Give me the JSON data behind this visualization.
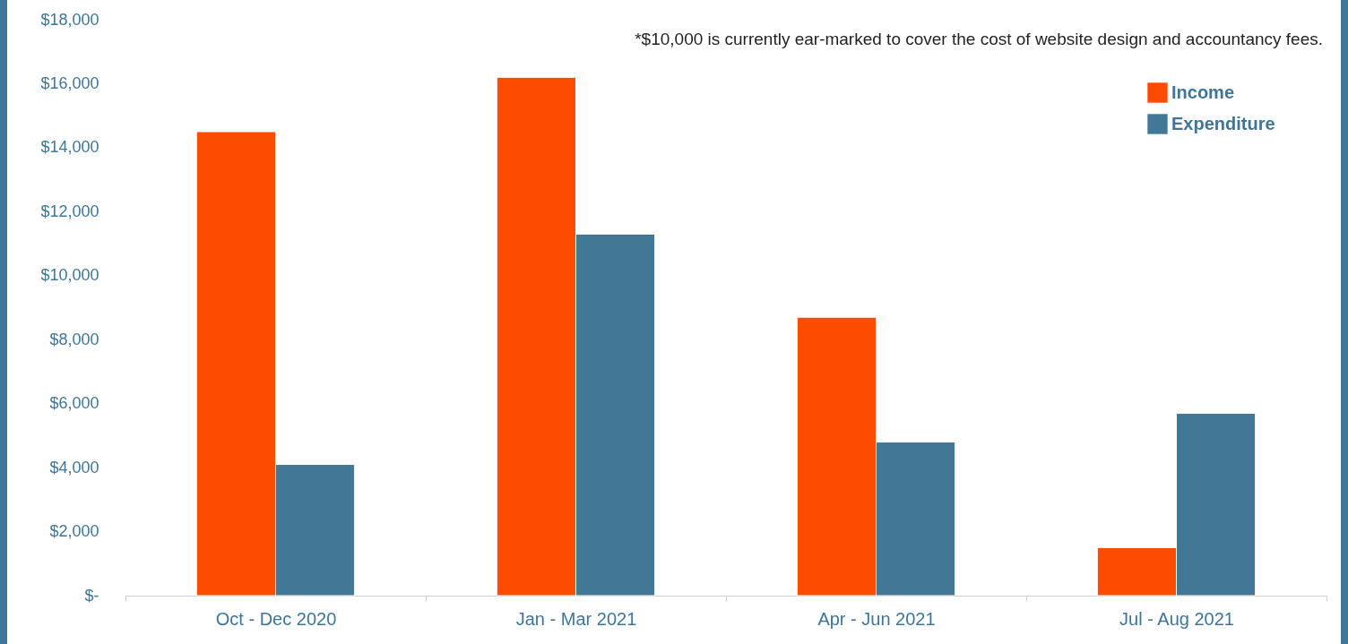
{
  "chart_data": {
    "type": "bar",
    "categories": [
      "Oct - Dec 2020",
      "Jan - Mar 2021",
      "Apr - Jun 2021",
      "Jul - Aug 2021"
    ],
    "series": [
      {
        "name": "Income",
        "color": "#fc4c02",
        "values": [
          14500,
          16200,
          8700,
          1500
        ]
      },
      {
        "name": "Expenditure",
        "color": "#427896",
        "values": [
          4100,
          11300,
          4800,
          5700
        ]
      }
    ],
    "ylim": [
      0,
      18000
    ],
    "yticks": [
      {
        "value": 0,
        "label": "$-"
      },
      {
        "value": 2000,
        "label": "$2,000"
      },
      {
        "value": 4000,
        "label": "$4,000"
      },
      {
        "value": 6000,
        "label": "$6,000"
      },
      {
        "value": 8000,
        "label": "$8,000"
      },
      {
        "value": 10000,
        "label": "$10,000"
      },
      {
        "value": 12000,
        "label": "$12,000"
      },
      {
        "value": 14000,
        "label": "$14,000"
      },
      {
        "value": 16000,
        "label": "$16,000"
      },
      {
        "value": 18000,
        "label": "$18,000"
      }
    ],
    "annotations": [
      "*$10,000 is currently ear-marked to cover the cost of website design and accountancy fees."
    ],
    "grid": false,
    "legend": "top right"
  }
}
